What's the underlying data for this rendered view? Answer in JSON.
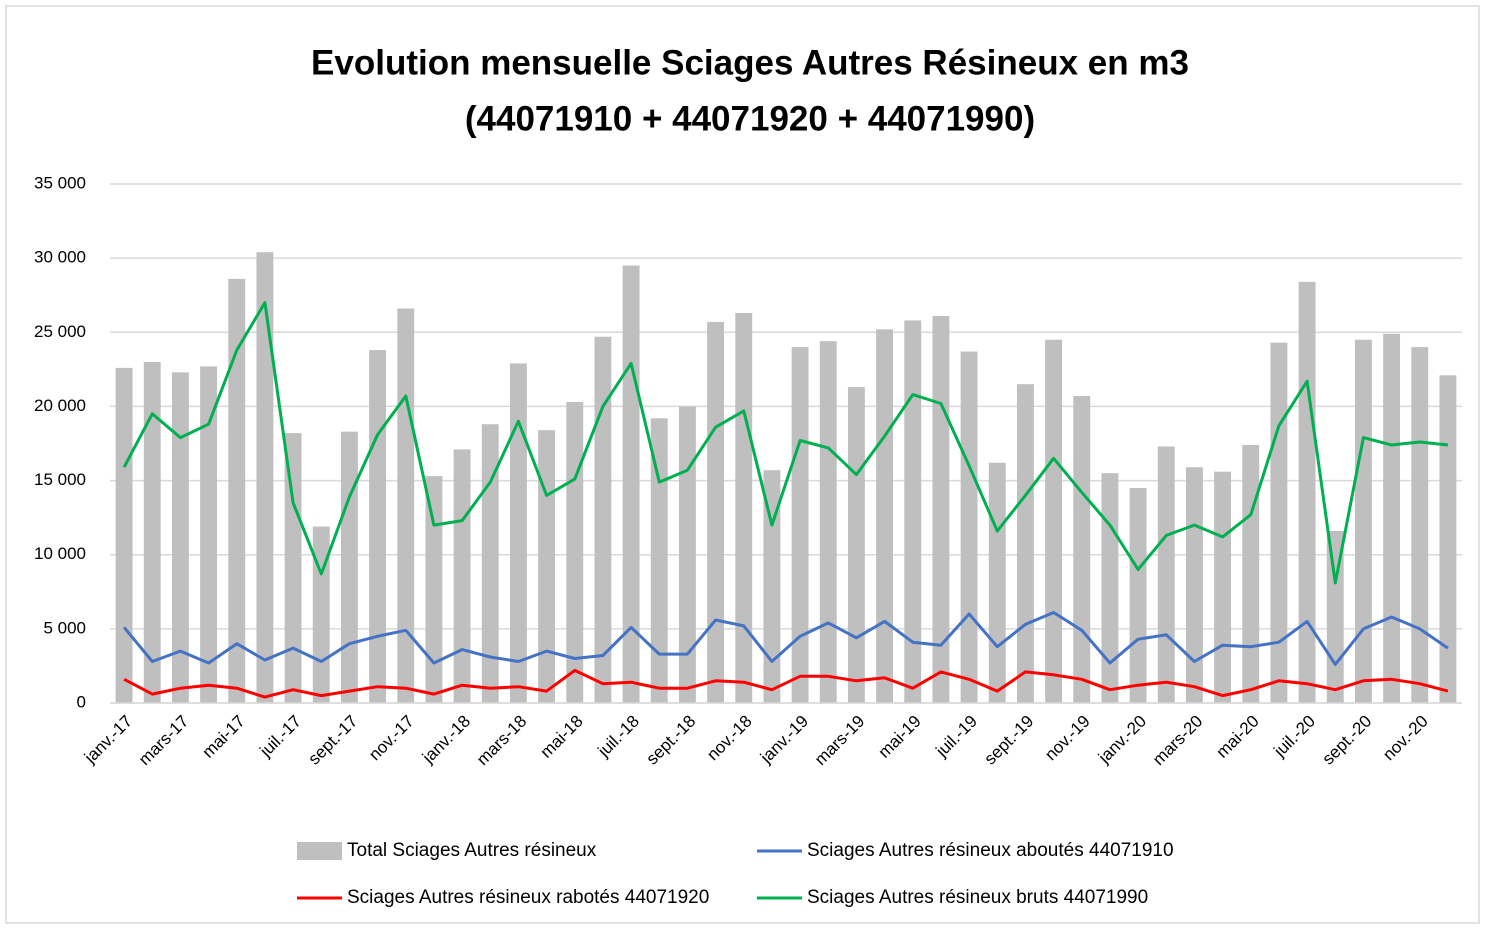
{
  "chart_data": {
    "type": "combo",
    "title": "Evolution mensuelle Sciages Autres Résineux en m3",
    "subtitle": "(44071910 + 44071920 + 44071990)",
    "categories": [
      "janv.-17",
      null,
      "mars-17",
      null,
      "mai-17",
      null,
      "juil.-17",
      null,
      "sept.-17",
      null,
      "nov.-17",
      null,
      "janv.-18",
      null,
      "mars-18",
      null,
      "mai-18",
      null,
      "juil.-18",
      null,
      "sept.-18",
      null,
      "nov.-18",
      null,
      "janv.-19",
      null,
      "mars-19",
      null,
      "mai-19",
      null,
      "juil.-19",
      null,
      "sept.-19",
      null,
      "nov.-19",
      null,
      "janv.-20",
      null,
      "mars-20",
      null,
      "mai-20",
      null,
      "juil.-20",
      null,
      "sept.-20",
      null,
      "nov.-20",
      null
    ],
    "series": [
      {
        "name": "Total Sciages Autres résineux",
        "kind": "bar",
        "color": "#bfbfbf",
        "values": [
          22600,
          23000,
          22300,
          22700,
          28600,
          30400,
          18200,
          11900,
          18300,
          23800,
          26600,
          15300,
          17100,
          18800,
          22900,
          18400,
          20300,
          24700,
          29500,
          19200,
          20000,
          25700,
          26300,
          15700,
          24000,
          24400,
          21300,
          25200,
          25800,
          26100,
          23700,
          16200,
          21500,
          24500,
          20700,
          15500,
          14500,
          17300,
          15900,
          15600,
          17400,
          24300,
          28400,
          11600,
          24500,
          24900,
          24000,
          22100
        ]
      },
      {
        "name": "Sciages Autres résineux aboutés 44071910",
        "kind": "line",
        "color": "#4472c4",
        "values": [
          5100,
          2800,
          3500,
          2700,
          4000,
          2900,
          3700,
          2800,
          4000,
          4500,
          4900,
          2700,
          3600,
          3100,
          2800,
          3500,
          3000,
          3200,
          5100,
          3300,
          3300,
          5600,
          5200,
          2800,
          4500,
          5400,
          4400,
          5500,
          4100,
          3900,
          6000,
          3800,
          5300,
          6100,
          4900,
          2700,
          4300,
          4600,
          2800,
          3900,
          3800,
          4100,
          5500,
          2600,
          5000,
          5800,
          5000,
          3700
        ]
      },
      {
        "name": "Sciages Autres résineux rabotés 44071920",
        "kind": "line",
        "color": "#ff0000",
        "values": [
          1600,
          600,
          1000,
          1200,
          1000,
          400,
          900,
          500,
          800,
          1100,
          1000,
          600,
          1200,
          1000,
          1100,
          800,
          2200,
          1300,
          1400,
          1000,
          1000,
          1500,
          1400,
          900,
          1800,
          1800,
          1500,
          1700,
          1000,
          2100,
          1600,
          800,
          2100,
          1900,
          1600,
          900,
          1200,
          1400,
          1100,
          500,
          900,
          1500,
          1300,
          900,
          1500,
          1600,
          1300,
          800
        ]
      },
      {
        "name": "Sciages Autres résineux bruts 44071990",
        "kind": "line",
        "color": "#00b050",
        "values": [
          15900,
          19500,
          17900,
          18800,
          23800,
          27000,
          13500,
          8700,
          13900,
          18100,
          20700,
          12000,
          12300,
          14900,
          19000,
          14000,
          15100,
          20000,
          22900,
          14900,
          15700,
          18600,
          19700,
          12000,
          17700,
          17200,
          15400,
          18000,
          20800,
          20200,
          16000,
          11600,
          14000,
          16500,
          14200,
          12000,
          9000,
          11300,
          12000,
          11200,
          12700,
          18700,
          21700,
          8100,
          17900,
          17400,
          17600,
          17400
        ]
      }
    ],
    "ylim": [
      0,
      35000
    ],
    "yticks": [
      0,
      {
        "value": 5000,
        "label": "5 000"
      },
      {
        "value": 10000,
        "label": "10 000"
      },
      {
        "value": 15000,
        "label": "15 000"
      },
      {
        "value": 20000,
        "label": "20 000"
      },
      {
        "value": 25000,
        "label": "25 000"
      },
      {
        "value": 30000,
        "label": "30 000"
      },
      {
        "value": 35000,
        "label": "35 000"
      }
    ],
    "grid": true,
    "legend": "bottom"
  }
}
